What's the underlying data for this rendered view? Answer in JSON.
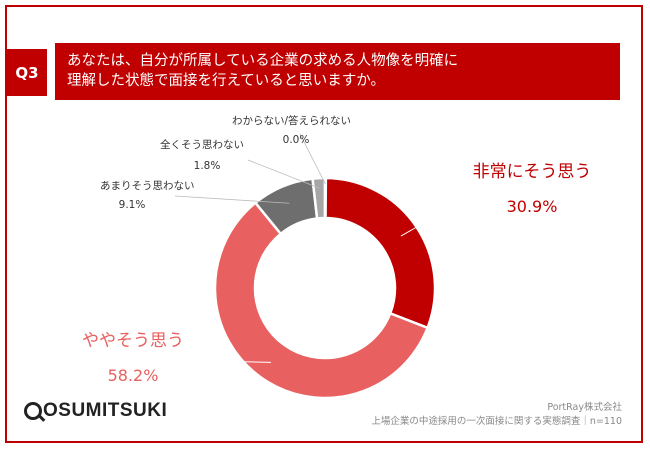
{
  "question": {
    "badge": "Q3",
    "line1": "あなたは、自分が所属している企業の求める人物像を明確に",
    "line2": "理解した状態で面接を行えていると思いますか。"
  },
  "colors": {
    "accent": "#c00000",
    "very": "#c00000",
    "somewhat": "#e86060",
    "notmuch": "#6e6e6e",
    "notatall": "#a6a6a6",
    "unknown": "#d9d9d9"
  },
  "chart_data": {
    "type": "pie",
    "donut": true,
    "slices": [
      {
        "label": "非常にそう思う",
        "value": 30.9,
        "value_label": "30.9%"
      },
      {
        "label": "ややそう思う",
        "value": 58.2,
        "value_label": "58.2%"
      },
      {
        "label": "あまりそう思わない",
        "value": 9.1,
        "value_label": "9.1%"
      },
      {
        "label": "全くそう思わない",
        "value": 1.8,
        "value_label": "1.8%"
      },
      {
        "label": "わからない/答えられない",
        "value": 0.0,
        "value_label": "0.0%"
      }
    ]
  },
  "footer": {
    "company": "PortRay株式会社",
    "survey": "上場企業の中途採用の一次面接に関する実態調査｜n=110",
    "logo_text": "OSUMITSUKI"
  }
}
